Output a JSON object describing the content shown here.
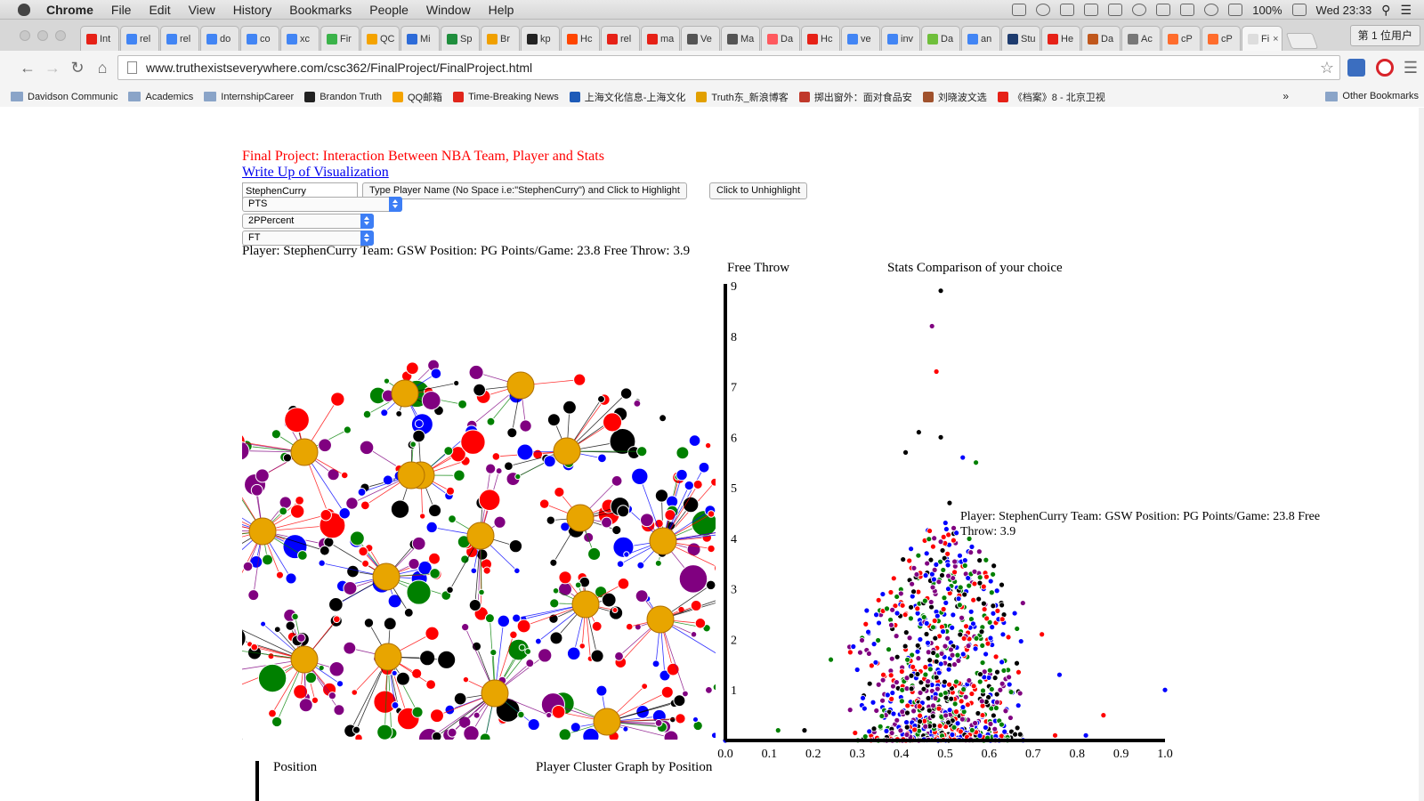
{
  "os_menu": {
    "app": "Chrome",
    "items": [
      "File",
      "Edit",
      "View",
      "History",
      "Bookmarks",
      "People",
      "Window",
      "Help"
    ],
    "battery": "100%",
    "clock": "Wed 23:33"
  },
  "browser": {
    "tabs": [
      {
        "label": "Int",
        "color": "#e62117"
      },
      {
        "label": "rel",
        "color": "#4285f4"
      },
      {
        "label": "rel",
        "color": "#4285f4"
      },
      {
        "label": "do",
        "color": "#4285f4"
      },
      {
        "label": "co",
        "color": "#4285f4"
      },
      {
        "label": "xc",
        "color": "#4285f4"
      },
      {
        "label": "Fir",
        "color": "#3bb34a"
      },
      {
        "label": "QC",
        "color": "#f4a300"
      },
      {
        "label": "Mi",
        "color": "#2d6bd8"
      },
      {
        "label": "Sp",
        "color": "#1f8e3d"
      },
      {
        "label": "Br",
        "color": "#f0a000"
      },
      {
        "label": "kp",
        "color": "#222222"
      },
      {
        "label": "Hc",
        "color": "#ff4500"
      },
      {
        "label": "rel",
        "color": "#e62117"
      },
      {
        "label": "ma",
        "color": "#e62117"
      },
      {
        "label": "Ve",
        "color": "#555555"
      },
      {
        "label": "Ma",
        "color": "#555555"
      },
      {
        "label": "Da",
        "color": "#ff5a5f"
      },
      {
        "label": "Hc",
        "color": "#e62117"
      },
      {
        "label": "ve",
        "color": "#4285f4"
      },
      {
        "label": "inv",
        "color": "#4285f4"
      },
      {
        "label": "Da",
        "color": "#6fbf3b"
      },
      {
        "label": "an",
        "color": "#4285f4"
      },
      {
        "label": "Stu",
        "color": "#1d3b6e"
      },
      {
        "label": "He",
        "color": "#e62117"
      },
      {
        "label": "Da",
        "color": "#c0571c"
      },
      {
        "label": "Ac",
        "color": "#777777"
      },
      {
        "label": "cP",
        "color": "#ff6c2c"
      },
      {
        "label": "cP",
        "color": "#ff6c2c"
      },
      {
        "label": "Fi",
        "color": "#dddddd"
      }
    ],
    "profile": "第 1 位用户",
    "url": "www.truthexistseverywhere.com/csc362/FinalProject/FinalProject.html",
    "bookmarks": [
      {
        "label": "Davidson Communic",
        "kind": "folder"
      },
      {
        "label": "Academics",
        "kind": "folder"
      },
      {
        "label": "InternshipCareer",
        "kind": "folder"
      },
      {
        "label": "Brandon Truth",
        "kind": "site",
        "color": "#222222"
      },
      {
        "label": "QQ邮箱",
        "kind": "site",
        "color": "#f4a300"
      },
      {
        "label": "Time-Breaking News",
        "kind": "site",
        "color": "#e0251b"
      },
      {
        "label": "上海文化信息-上海文化",
        "kind": "site",
        "color": "#1e5bb8"
      },
      {
        "label": "Truth东_新浪博客",
        "kind": "site",
        "color": "#e2a000"
      },
      {
        "label": "掷出窗外：面对食品安",
        "kind": "site",
        "color": "#c0392b"
      },
      {
        "label": "刘晓波文选",
        "kind": "site",
        "color": "#a0522d"
      },
      {
        "label": "《档案》8 - 北京卫视",
        "kind": "site",
        "color": "#e62117"
      }
    ],
    "more": "»",
    "other_bookmarks": "Other Bookmarks"
  },
  "page": {
    "title": "Final Project: Interaction Between NBA Team, Player and Stats",
    "writeup_link": "Write Up of Visualization",
    "player_input_value": "StephenCurry",
    "highlight_button": "Type Player Name (No Space i.e:\"StephenCurry\") and Click to Highlight",
    "unhighlight_button": "Click to Unhighlight",
    "select_cluster": "PTS",
    "select_x": "2PPercent",
    "select_y": "FT",
    "player_info": "Player: StephenCurry Team: GSW Position: PG Points/Game: 23.8 Free Throw: 3.9"
  },
  "colors": {
    "team_hub": "#e8a500",
    "positions": [
      "#ff0000",
      "#0000ff",
      "#008000",
      "#800080",
      "#000000"
    ]
  },
  "chart_data": {
    "type": "scatter",
    "title": "Stats Comparison of your choice",
    "ylabel": "Free Throw",
    "xlabel": "",
    "xlim": [
      0.0,
      1.0
    ],
    "ylim": [
      0,
      9
    ],
    "x_ticks": [
      "0.0",
      "0.1",
      "0.2",
      "0.3",
      "0.4",
      "0.5",
      "0.6",
      "0.7",
      "0.8",
      "0.9",
      "1.0"
    ],
    "y_ticks": [
      "1",
      "2",
      "3",
      "4",
      "5",
      "6",
      "7",
      "8",
      "9"
    ],
    "tooltip": "Player: StephenCurry Team: GSW Position: PG Points/Game: 23.8 Free Throw: 3.9",
    "outliers": [
      {
        "x": 0.49,
        "y": 8.9,
        "c": "#000000"
      },
      {
        "x": 0.47,
        "y": 8.2,
        "c": "#800080"
      },
      {
        "x": 0.48,
        "y": 7.3,
        "c": "#ff0000"
      },
      {
        "x": 0.44,
        "y": 6.1,
        "c": "#000000"
      },
      {
        "x": 0.41,
        "y": 5.7,
        "c": "#000000"
      },
      {
        "x": 0.49,
        "y": 6.0,
        "c": "#000000"
      },
      {
        "x": 0.54,
        "y": 5.6,
        "c": "#0000ff"
      },
      {
        "x": 0.57,
        "y": 5.5,
        "c": "#008000"
      },
      {
        "x": 0.51,
        "y": 4.7,
        "c": "#000000"
      },
      {
        "x": 0.63,
        "y": 2.4,
        "c": "#ff0000"
      },
      {
        "x": 0.72,
        "y": 2.1,
        "c": "#ff0000"
      },
      {
        "x": 0.76,
        "y": 1.3,
        "c": "#0000ff"
      },
      {
        "x": 0.86,
        "y": 0.5,
        "c": "#ff0000"
      },
      {
        "x": 1.0,
        "y": 1.0,
        "c": "#0000ff"
      },
      {
        "x": 0.82,
        "y": 0.1,
        "c": "#0000ff"
      },
      {
        "x": 0.75,
        "y": 0.1,
        "c": "#ff0000"
      },
      {
        "x": 0.12,
        "y": 0.2,
        "c": "#008000"
      },
      {
        "x": 0.18,
        "y": 0.2,
        "c": "#000000"
      },
      {
        "x": 0.24,
        "y": 1.6,
        "c": "#008000"
      },
      {
        "x": 0.3,
        "y": 1.4,
        "c": "#0000ff"
      },
      {
        "x": 0.0,
        "y": 0.0,
        "c": "#0000ff"
      }
    ]
  },
  "cluster_graph": {
    "title": "Player Cluster Graph by Position",
    "legend_label": "Position"
  }
}
